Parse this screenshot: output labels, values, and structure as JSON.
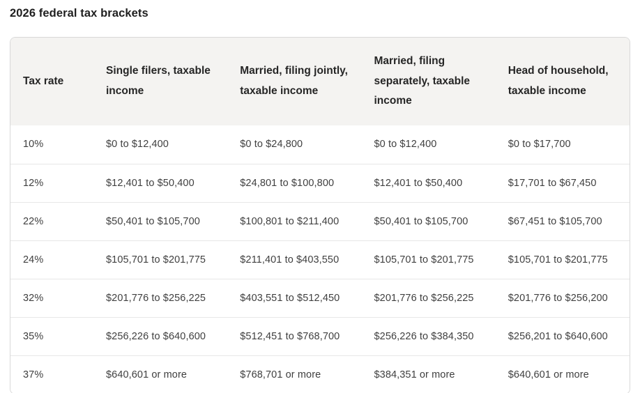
{
  "page": {
    "title": "2026 federal tax brackets"
  },
  "table": {
    "columns": [
      {
        "id": "tax-rate",
        "label": "Tax rate"
      },
      {
        "id": "single-filers",
        "label": "Single filers, taxable income"
      },
      {
        "id": "married-jointly",
        "label": "Married, filing jointly, taxable income"
      },
      {
        "id": "married-separately",
        "label": "Married, filing separately, taxable income"
      },
      {
        "id": "head-of-household",
        "label": "Head of household, taxable income"
      }
    ],
    "rows": [
      [
        "10%",
        "$0 to $12,400",
        "$0 to $24,800",
        "$0 to $12,400",
        "$0 to $17,700"
      ],
      [
        "12%",
        "$12,401 to $50,400",
        "$24,801 to $100,800",
        "$12,401 to $50,400",
        "$17,701 to $67,450"
      ],
      [
        "22%",
        "$50,401 to $105,700",
        "$100,801 to $211,400",
        "$50,401 to $105,700",
        "$67,451 to $105,700"
      ],
      [
        "24%",
        "$105,701 to $201,775",
        "$211,401 to $403,550",
        "$105,701 to $201,775",
        "$105,701 to $201,775"
      ],
      [
        "32%",
        "$201,776 to $256,225",
        "$403,551 to $512,450",
        "$201,776 to $256,225",
        "$201,776 to $256,200"
      ],
      [
        "35%",
        "$256,226 to $640,600",
        "$512,451 to $768,700",
        "$256,226 to $384,350",
        "$256,201 to $640,600"
      ],
      [
        "37%",
        "$640,601 or more",
        "$768,701 or more",
        "$384,351 or more",
        "$640,601 or more"
      ]
    ]
  },
  "colors": {
    "header_bg": "#f4f3f1",
    "table_border": "#d8d8d8",
    "row_divider": "#e7e7e7",
    "title_text": "#1f1f1f",
    "header_text": "#262626",
    "cell_text": "#3f3f3f",
    "page_bg": "#ffffff"
  }
}
